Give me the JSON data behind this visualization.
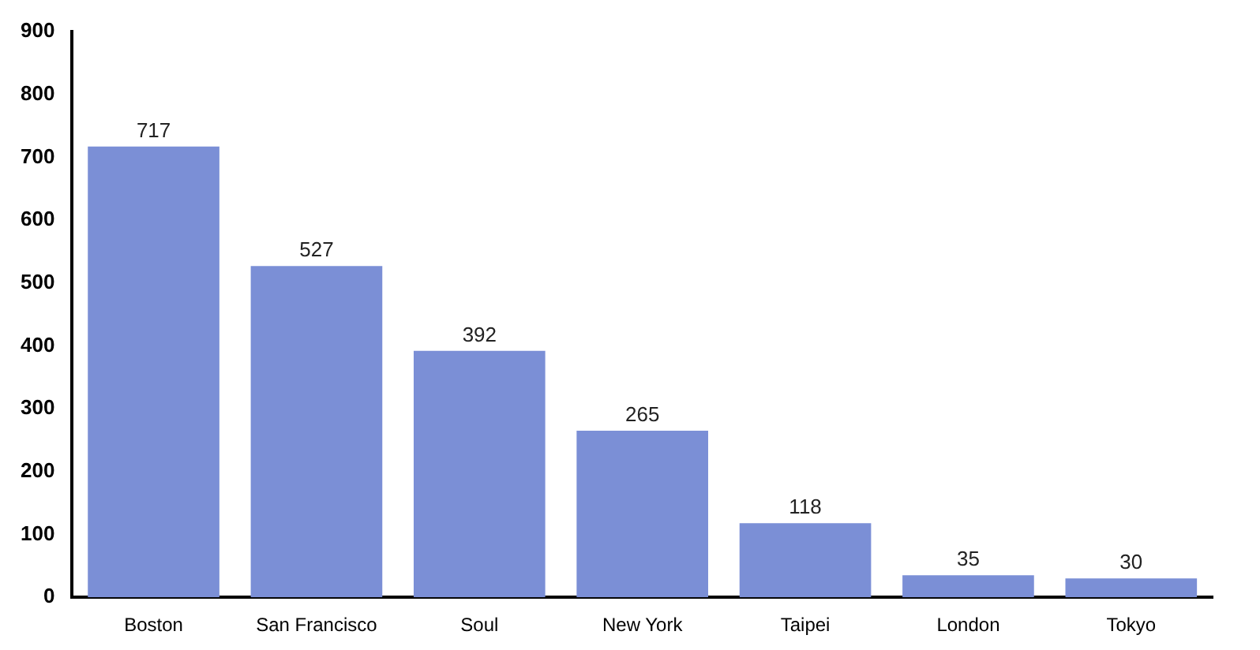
{
  "chart_data": {
    "type": "bar",
    "categories": [
      "Boston",
      "San Francisco",
      "Soul",
      "New York",
      "Taipei",
      "London",
      "Tokyo"
    ],
    "values": [
      717,
      527,
      392,
      265,
      118,
      35,
      30
    ],
    "color": "#7b8fd6",
    "ylim": [
      0,
      900
    ],
    "yticks": [
      0,
      100,
      200,
      300,
      400,
      500,
      600,
      700,
      800,
      900
    ],
    "data_labels": true,
    "grid": false,
    "legend": false
  }
}
